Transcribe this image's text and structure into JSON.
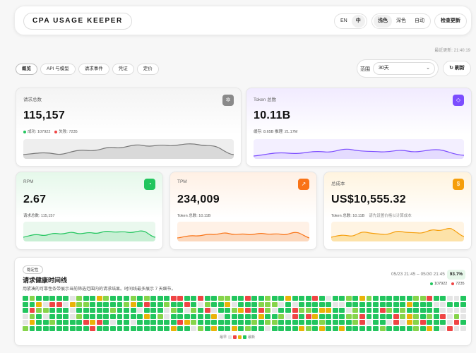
{
  "header": {
    "logo": "CPA USAGE KEEPER",
    "lang": [
      "EN",
      "中"
    ],
    "lang_active": 1,
    "theme": [
      "浅色",
      "深色",
      "自动"
    ],
    "theme_active": 0,
    "check_update": "检查更新",
    "last_updated": "最近更新: 21:40:19"
  },
  "tabs": [
    {
      "label": "概览",
      "active": true
    },
    {
      "label": "API 与模型",
      "active": false
    },
    {
      "label": "请求事件",
      "active": false
    },
    {
      "label": "凭证",
      "active": false
    },
    {
      "label": "定价",
      "active": false
    }
  ],
  "range": {
    "label": "范围",
    "value": "30天"
  },
  "refresh_label": "刷新",
  "cards": {
    "requests": {
      "label": "请求总数",
      "value": "115,157",
      "success": "成功: 107922",
      "fail": "失败: 7235",
      "color": "#888888",
      "icon": "sparkle-icon"
    },
    "tokens": {
      "label": "Token 总数",
      "value": "10.11B",
      "sub": "缓存: 8.65B   推理: 21.17M",
      "color": "#7c4dff",
      "icon": "diamond-icon"
    },
    "rpm": {
      "label": "RPM",
      "value": "2.67",
      "sub": "请求总数: 115,157",
      "color": "#22c55e",
      "icon": "timer-icon"
    },
    "tpm": {
      "label": "TPM",
      "value": "234,009",
      "sub": "Token 总数: 10.11B",
      "color": "#f97316",
      "icon": "trend-icon"
    },
    "cost": {
      "label": "总成本",
      "value": "US$10,555.32",
      "sub": "Token 总数: 10.11B",
      "note": "请先设置价格以计算成本",
      "color": "#f59e0b",
      "icon": "dollar-icon"
    }
  },
  "timeline": {
    "tag": "稳定性",
    "title": "请求健康时间线",
    "desc": "用紧凑的可靠性条带展示当前筛选范围内的请求结果。时间线最多展示 7 天细节。",
    "range": "05/23 21:45 – 05/30 21:45",
    "rate": "93.7%",
    "success_count": "107922",
    "fail_count": "7235",
    "legend_low": "最早",
    "legend_high": "最新"
  },
  "colors": {
    "success": "#22c55e",
    "warn": "#eab308",
    "bad": "#ef4444",
    "empty": "#e5e5e5"
  }
}
